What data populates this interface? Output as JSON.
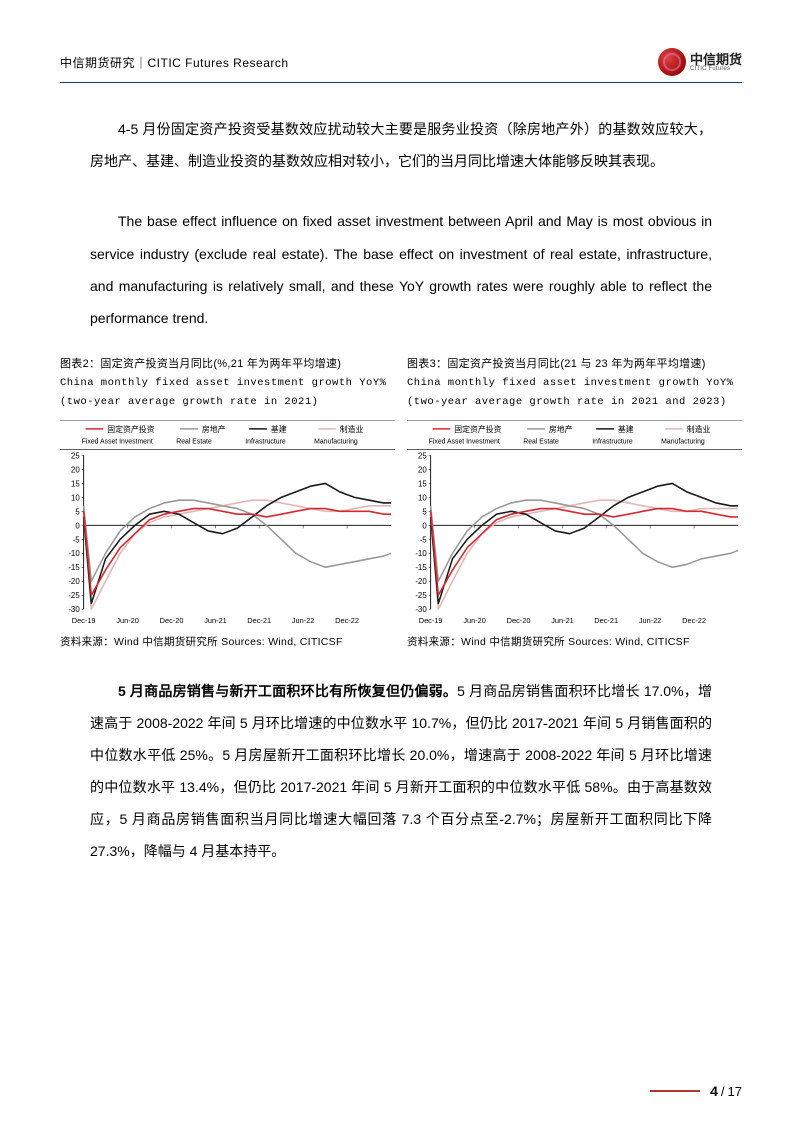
{
  "header": {
    "left": "中信期货研究｜CITIC Futures Research",
    "brand_cn": "中信期货",
    "brand_en": "CITIC Futures"
  },
  "para1": "4-5 月份固定资产投资受基数效应扰动较大主要是服务业投资（除房地产外）的基数效应较大，房地产、基建、制造业投资的基数效应相对较小，它们的当月同比增速大体能够反映其表现。",
  "para2": "The base effect influence on fixed asset investment between April and May is most obvious in service industry (exclude real estate). The base effect on investment of real estate, infrastructure, and manufacturing is relatively small, and these YoY growth rates were roughly able to reflect the performance trend.",
  "chart2": {
    "title_cn": "图表2：固定资产投资当月同比(%,21 年为两年平均增速)",
    "title_en1": "China monthly fixed asset investment growth YoY%",
    "title_en2": "(two-year average growth rate in 2021)",
    "source": "资料来源：Wind 中信期货研究所 Sources: Wind, CITICSF"
  },
  "chart3": {
    "title_cn": "图表3：固定资产投资当月同比(21 与 23 年为两年平均增速)",
    "title_en1": "China monthly fixed asset investment growth YoY%",
    "title_en2": "(two-year average growth rate in 2021 and 2023)",
    "source": "资料来源：Wind 中信期货研究所 Sources: Wind, CITICSF"
  },
  "legend": {
    "s1_cn": "固定资产投资",
    "s1_en": "Fixed Asset Investment",
    "s2_cn": "房地产",
    "s2_en": "Real Estate",
    "s3_cn": "基建",
    "s3_en": "Infrastructure",
    "s4_cn": "制造业",
    "s4_en": "Manufacturing"
  },
  "chart_common": {
    "type": "line",
    "ylim": [
      -30,
      25
    ],
    "yticks": [
      -30,
      -25,
      -20,
      -15,
      -10,
      -5,
      0,
      5,
      10,
      15,
      20,
      25
    ],
    "xlabels": [
      "Dec-19",
      "Jun-20",
      "Dec-20",
      "Jun-21",
      "Dec-21",
      "Jun-22",
      "Dec-22"
    ],
    "xpositions": [
      0,
      0.143,
      0.286,
      0.429,
      0.571,
      0.714,
      0.857
    ],
    "colors": {
      "fixed": "#d4292e",
      "real_estate": "#999999",
      "infra": "#1a1a1a",
      "mfg": "#e4b6b6",
      "axis": "#000000",
      "grid": "#cccccc",
      "bg": "#ffffff"
    },
    "line_width": 1.6,
    "legend_fontsize": 8,
    "tick_fontsize": 8
  },
  "chart2_data": {
    "x": [
      0,
      0.025,
      0.071,
      0.119,
      0.167,
      0.214,
      0.262,
      0.31,
      0.357,
      0.405,
      0.452,
      0.5,
      0.548,
      0.595,
      0.643,
      0.69,
      0.738,
      0.786,
      0.833,
      0.881,
      0.929,
      0.976,
      1.0
    ],
    "fixed": [
      5,
      -25,
      -16,
      -8,
      -3,
      2,
      4,
      5,
      6,
      6,
      5,
      4,
      4,
      3,
      4,
      5,
      6,
      6,
      5,
      5,
      5,
      4,
      4
    ],
    "real_estate": [
      7,
      -20,
      -10,
      -2,
      3,
      6,
      8,
      9,
      9,
      8,
      7,
      6,
      4,
      0,
      -5,
      -10,
      -13,
      -15,
      -14,
      -13,
      -12,
      -11,
      -10
    ],
    "infra": [
      3,
      -28,
      -12,
      -5,
      0,
      4,
      5,
      4,
      1,
      -2,
      -3,
      -1,
      3,
      7,
      10,
      12,
      14,
      15,
      12,
      10,
      9,
      8,
      8
    ],
    "mfg": [
      4,
      -30,
      -20,
      -10,
      -3,
      1,
      3,
      4,
      5,
      6,
      7,
      8,
      9,
      9,
      8,
      7,
      6,
      5,
      5,
      6,
      7,
      7,
      7
    ]
  },
  "chart3_data": {
    "x": [
      0,
      0.025,
      0.071,
      0.119,
      0.167,
      0.214,
      0.262,
      0.31,
      0.357,
      0.405,
      0.452,
      0.5,
      0.548,
      0.595,
      0.643,
      0.69,
      0.738,
      0.786,
      0.833,
      0.881,
      0.929,
      0.976,
      1.0
    ],
    "fixed": [
      5,
      -25,
      -16,
      -8,
      -3,
      2,
      4,
      5,
      6,
      6,
      5,
      4,
      4,
      3,
      4,
      5,
      6,
      6,
      5,
      5,
      4,
      3,
      3
    ],
    "real_estate": [
      7,
      -20,
      -10,
      -2,
      3,
      6,
      8,
      9,
      9,
      8,
      7,
      6,
      4,
      0,
      -5,
      -10,
      -13,
      -15,
      -14,
      -12,
      -11,
      -10,
      -9
    ],
    "infra": [
      3,
      -28,
      -12,
      -5,
      0,
      4,
      5,
      4,
      1,
      -2,
      -3,
      -1,
      3,
      7,
      10,
      12,
      14,
      15,
      12,
      10,
      8,
      7,
      7
    ],
    "mfg": [
      4,
      -30,
      -20,
      -10,
      -3,
      1,
      3,
      4,
      5,
      6,
      7,
      8,
      9,
      9,
      8,
      7,
      6,
      5,
      5,
      6,
      6,
      6,
      6
    ]
  },
  "para3_bold": "5 月商品房销售与新开工面积环比有所恢复但仍偏弱。",
  "para3_rest": "5 月商品房销售面积环比增长 17.0%，增速高于 2008-2022 年间 5 月环比增速的中位数水平 10.7%，但仍比 2017-2021 年间 5 月销售面积的中位数水平低 25%。5 月房屋新开工面积环比增长 20.0%，增速高于 2008-2022 年间 5 月环比增速的中位数水平 13.4%，但仍比 2017-2021 年间 5 月新开工面积的中位数水平低 58%。由于高基数效应，5 月商品房销售面积当月同比增速大幅回落 7.3 个百分点至-2.7%；房屋新开工面积同比下降27.3%，降幅与 4 月基本持平。",
  "footer": {
    "page": "4",
    "total": "17"
  }
}
